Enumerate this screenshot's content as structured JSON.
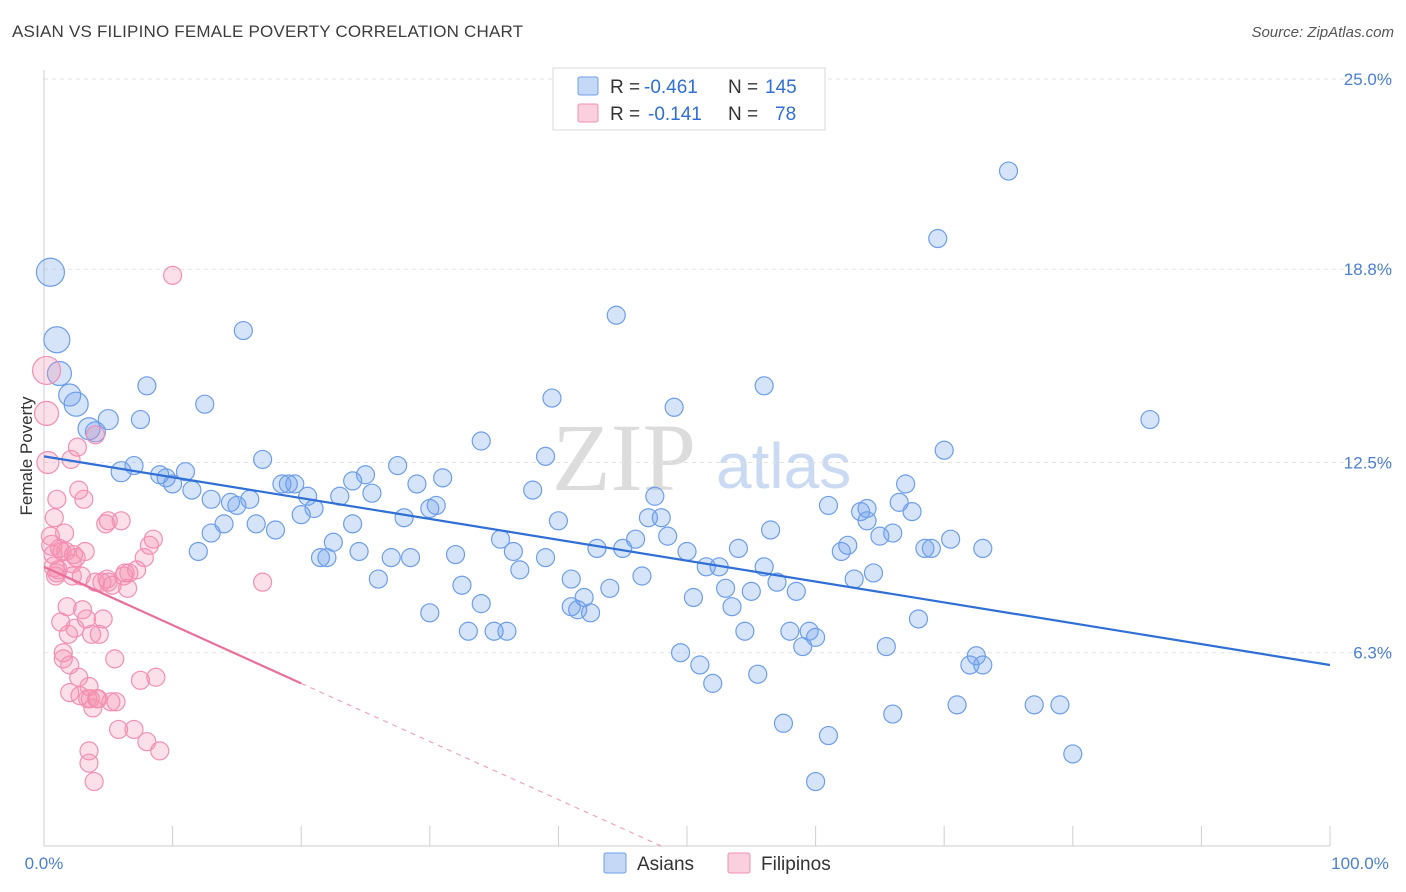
{
  "title": "ASIAN VS FILIPINO FEMALE POVERTY CORRELATION CHART",
  "source": "Source: ZipAtlas.com",
  "legend_top": {
    "rows": [
      {
        "r_label": "R =",
        "r_value": "-0.461",
        "n_label": "N =",
        "n_value": "145",
        "color": "#6d9eeb"
      },
      {
        "r_label": "R =",
        "r_value": "-0.141",
        "n_label": "N =",
        "n_value": "78",
        "color": "#f48fb1"
      }
    ]
  },
  "legend_bottom": {
    "asians": "Asians",
    "filipinos": "Filipinos"
  },
  "watermark": {
    "zip": "ZIP",
    "atlas": "atlas"
  },
  "chart_data": {
    "type": "scatter",
    "title": "ASIAN VS FILIPINO FEMALE POVERTY CORRELATION CHART",
    "xlabel": "",
    "ylabel": "Female Poverty",
    "xlim": [
      0,
      100
    ],
    "ylim": [
      0,
      25
    ],
    "x_tick_labels": [
      "0.0%",
      "100.0%"
    ],
    "y_ticks": [
      6.3,
      12.5,
      18.8,
      25.0
    ],
    "y_tick_labels": [
      "6.3%",
      "12.5%",
      "18.8%",
      "25.0%"
    ],
    "grid": "horizontal dashed",
    "legend_position": "top-center",
    "series": [
      {
        "name": "Asians",
        "color": "#6d9eeb",
        "trend": {
          "x": [
            0,
            100
          ],
          "y": [
            12.7,
            5.9
          ]
        },
        "points": [
          [
            0.5,
            18.7,
            14
          ],
          [
            1,
            16.5,
            13
          ],
          [
            1.2,
            15.4,
            12
          ],
          [
            2,
            14.7,
            11
          ],
          [
            2.5,
            14.4,
            12
          ],
          [
            3.5,
            13.6,
            11
          ],
          [
            4,
            13.5,
            10
          ],
          [
            5,
            13.9,
            10
          ],
          [
            6,
            12.2,
            10
          ],
          [
            7,
            12.4,
            9
          ],
          [
            7.5,
            13.9,
            9
          ],
          [
            8,
            15,
            9
          ],
          [
            9,
            12.1,
            9
          ],
          [
            9.5,
            12,
            9
          ],
          [
            10,
            11.8,
            9
          ],
          [
            11,
            12.2,
            9
          ],
          [
            11.5,
            11.6,
            9
          ],
          [
            12,
            9.6,
            9
          ],
          [
            12.5,
            14.4,
            9
          ],
          [
            13,
            10.2,
            9
          ],
          [
            13,
            11.3,
            9
          ],
          [
            14,
            10.5,
            9
          ],
          [
            14.5,
            11.2,
            9
          ],
          [
            15,
            11.1,
            9
          ],
          [
            15.5,
            16.8,
            9
          ],
          [
            16,
            11.3,
            9
          ],
          [
            16.5,
            10.5,
            9
          ],
          [
            17,
            12.6,
            9
          ],
          [
            18,
            10.3,
            9
          ],
          [
            18.5,
            11.8,
            9
          ],
          [
            19,
            11.8,
            9
          ],
          [
            19.5,
            11.8,
            9
          ],
          [
            20,
            10.8,
            9
          ],
          [
            20.5,
            11.4,
            9
          ],
          [
            21,
            11,
            9
          ],
          [
            21.5,
            9.4,
            9
          ],
          [
            22,
            9.4,
            9
          ],
          [
            22.5,
            9.9,
            9
          ],
          [
            23,
            11.4,
            9
          ],
          [
            24,
            11.9,
            9
          ],
          [
            24,
            10.5,
            9
          ],
          [
            24.5,
            9.6,
            9
          ],
          [
            25,
            12.1,
            9
          ],
          [
            25.5,
            11.5,
            9
          ],
          [
            26,
            8.7,
            9
          ],
          [
            27,
            9.4,
            9
          ],
          [
            27.5,
            12.4,
            9
          ],
          [
            28,
            10.7,
            9
          ],
          [
            28.5,
            9.4,
            9
          ],
          [
            29,
            11.8,
            9
          ],
          [
            30,
            11,
            9
          ],
          [
            30,
            7.6,
            9
          ],
          [
            30.5,
            11.1,
            9
          ],
          [
            31,
            12,
            9
          ],
          [
            32,
            9.5,
            9
          ],
          [
            32.5,
            8.5,
            9
          ],
          [
            33,
            7,
            9
          ],
          [
            34,
            13.2,
            9
          ],
          [
            34,
            7.9,
            9
          ],
          [
            35,
            7,
            9
          ],
          [
            35.5,
            10,
            9
          ],
          [
            36,
            7,
            9
          ],
          [
            36.5,
            9.6,
            9
          ],
          [
            37,
            9,
            9
          ],
          [
            38,
            11.6,
            9
          ],
          [
            39,
            12.7,
            9
          ],
          [
            39,
            9.4,
            9
          ],
          [
            39.5,
            14.6,
            9
          ],
          [
            40,
            10.6,
            9
          ],
          [
            41,
            8.7,
            9
          ],
          [
            41,
            7.8,
            9
          ],
          [
            41.5,
            7.7,
            9
          ],
          [
            42,
            8.1,
            9
          ],
          [
            42.5,
            7.6,
            9
          ],
          [
            43,
            9.7,
            9
          ],
          [
            44,
            8.4,
            9
          ],
          [
            44.5,
            17.3,
            9
          ],
          [
            45,
            9.7,
            9
          ],
          [
            46,
            10,
            9
          ],
          [
            46.5,
            8.8,
            9
          ],
          [
            47,
            10.7,
            9
          ],
          [
            47.5,
            11.4,
            9
          ],
          [
            48,
            10.7,
            9
          ],
          [
            48.5,
            10.1,
            9
          ],
          [
            49,
            14.3,
            9
          ],
          [
            49.5,
            6.3,
            9
          ],
          [
            50,
            9.6,
            9
          ],
          [
            50.5,
            8.1,
            9
          ],
          [
            51,
            5.9,
            9
          ],
          [
            51.5,
            9.1,
            9
          ],
          [
            52,
            5.3,
            9
          ],
          [
            52.5,
            9.1,
            9
          ],
          [
            53,
            8.4,
            9
          ],
          [
            53.5,
            7.8,
            9
          ],
          [
            54,
            9.7,
            9
          ],
          [
            54.5,
            7,
            9
          ],
          [
            55,
            8.3,
            9
          ],
          [
            55.5,
            5.6,
            9
          ],
          [
            56,
            15,
            9
          ],
          [
            56,
            9.1,
            9
          ],
          [
            56.5,
            10.3,
            9
          ],
          [
            57,
            8.6,
            9
          ],
          [
            57.5,
            4.0,
            9
          ],
          [
            58,
            7,
            9
          ],
          [
            58.5,
            8.3,
            9
          ],
          [
            59,
            6.5,
            9
          ],
          [
            59.5,
            7,
            9
          ],
          [
            60,
            6.8,
            9
          ],
          [
            60,
            2.1,
            9
          ],
          [
            61,
            3.6,
            9
          ],
          [
            61,
            11.1,
            9
          ],
          [
            62,
            9.6,
            9
          ],
          [
            62.5,
            9.8,
            9
          ],
          [
            63,
            8.7,
            9
          ],
          [
            63.5,
            10.9,
            9
          ],
          [
            64,
            11.0,
            9
          ],
          [
            64,
            10.6,
            9
          ],
          [
            64.5,
            8.9,
            9
          ],
          [
            65,
            10.1,
            9
          ],
          [
            65.5,
            6.5,
            9
          ],
          [
            66,
            4.3,
            9
          ],
          [
            66,
            10.2,
            9
          ],
          [
            66.5,
            11.2,
            9
          ],
          [
            67,
            11.8,
            9
          ],
          [
            67.5,
            10.9,
            9
          ],
          [
            68,
            7.4,
            9
          ],
          [
            68.5,
            9.7,
            9
          ],
          [
            69,
            9.7,
            9
          ],
          [
            69.5,
            19.8,
            9
          ],
          [
            70,
            12.9,
            9
          ],
          [
            70.5,
            10.0,
            9
          ],
          [
            71,
            4.6,
            9
          ],
          [
            72,
            5.9,
            9
          ],
          [
            72.5,
            6.2,
            9
          ],
          [
            73,
            5.9,
            9
          ],
          [
            73,
            9.7,
            9
          ],
          [
            75,
            22,
            9
          ],
          [
            77,
            4.6,
            9
          ],
          [
            79,
            4.6,
            9
          ],
          [
            80,
            3.0,
            9
          ],
          [
            86,
            13.9,
            9
          ]
        ]
      },
      {
        "name": "Filipinos",
        "color": "#f48fb1",
        "trend": {
          "x": [
            0,
            20
          ],
          "y": [
            9.1,
            5.3
          ]
        },
        "trend_extended": {
          "x": [
            20,
            48
          ],
          "y": [
            5.3,
            0
          ]
        },
        "points": [
          [
            0.2,
            15.5,
            14
          ],
          [
            0.2,
            14.1,
            12
          ],
          [
            0.3,
            12.5,
            11
          ],
          [
            0.5,
            10.1,
            9
          ],
          [
            0.6,
            9.8,
            10
          ],
          [
            0.7,
            9.5,
            9
          ],
          [
            0.8,
            9.1,
            10
          ],
          [
            0.8,
            10.7,
            9
          ],
          [
            1,
            8.9,
            9
          ],
          [
            1,
            11.3,
            9
          ],
          [
            1.2,
            9.7,
            9
          ],
          [
            1.3,
            7.3,
            9
          ],
          [
            1.4,
            9.6,
            9
          ],
          [
            1.5,
            6.3,
            9
          ],
          [
            1.5,
            6.1,
            9
          ],
          [
            1.6,
            10.2,
            9
          ],
          [
            1.7,
            9.6,
            9
          ],
          [
            1.8,
            7.8,
            9
          ],
          [
            1.9,
            6.9,
            9
          ],
          [
            2,
            5.0,
            9
          ],
          [
            2,
            5.9,
            9
          ],
          [
            2.1,
            12.6,
            9
          ],
          [
            2.2,
            9.2,
            9
          ],
          [
            2.3,
            9.5,
            9
          ],
          [
            2.4,
            7.1,
            9
          ],
          [
            2.5,
            9.4,
            9
          ],
          [
            2.6,
            13.0,
            9
          ],
          [
            2.7,
            11.6,
            9
          ],
          [
            2.8,
            4.9,
            9
          ],
          [
            2.9,
            8.8,
            9
          ],
          [
            3,
            7.7,
            9
          ],
          [
            3.1,
            11.3,
            9
          ],
          [
            3.2,
            9.6,
            9
          ],
          [
            3.3,
            7.4,
            9
          ],
          [
            3.4,
            4.8,
            9
          ],
          [
            3.5,
            3.1,
            9
          ],
          [
            3.5,
            2.7,
            9
          ],
          [
            3.6,
            4.8,
            9
          ],
          [
            3.7,
            6.9,
            9
          ],
          [
            3.8,
            4.5,
            9
          ],
          [
            3.9,
            2.1,
            9
          ],
          [
            4,
            13.4,
            9
          ],
          [
            4,
            8.6,
            9
          ],
          [
            4.2,
            4.8,
            9
          ],
          [
            4.3,
            6.9,
            9
          ],
          [
            4.5,
            8.6,
            9
          ],
          [
            4.6,
            7.4,
            9
          ],
          [
            4.8,
            10.5,
            9
          ],
          [
            4.9,
            8.7,
            9
          ],
          [
            5,
            10.6,
            9
          ],
          [
            5,
            8.6,
            9
          ],
          [
            5.2,
            4.7,
            9
          ],
          [
            5.3,
            8.5,
            9
          ],
          [
            5.5,
            6.1,
            9
          ],
          [
            5.6,
            4.7,
            9
          ],
          [
            5.8,
            3.8,
            9
          ],
          [
            6,
            10.6,
            9
          ],
          [
            6.2,
            8.8,
            9
          ],
          [
            6.3,
            8.9,
            9
          ],
          [
            6.5,
            8.4,
            9
          ],
          [
            6.6,
            8.9,
            9
          ],
          [
            7,
            3.8,
            9
          ],
          [
            7.2,
            9.0,
            9
          ],
          [
            7.5,
            5.4,
            9
          ],
          [
            7.8,
            9.4,
            9
          ],
          [
            8,
            3.4,
            9
          ],
          [
            8.2,
            9.8,
            9
          ],
          [
            8.5,
            10.0,
            9
          ],
          [
            9,
            3.1,
            9
          ],
          [
            10,
            18.6,
            9
          ],
          [
            17,
            8.6,
            9
          ],
          [
            3.5,
            5.2,
            9
          ],
          [
            4.1,
            4.8,
            9
          ],
          [
            2.2,
            8.8,
            9
          ],
          [
            1.1,
            9.0,
            9
          ],
          [
            0.9,
            8.8,
            9
          ],
          [
            2.7,
            5.5,
            9
          ],
          [
            8.7,
            5.5,
            9
          ]
        ]
      }
    ]
  }
}
